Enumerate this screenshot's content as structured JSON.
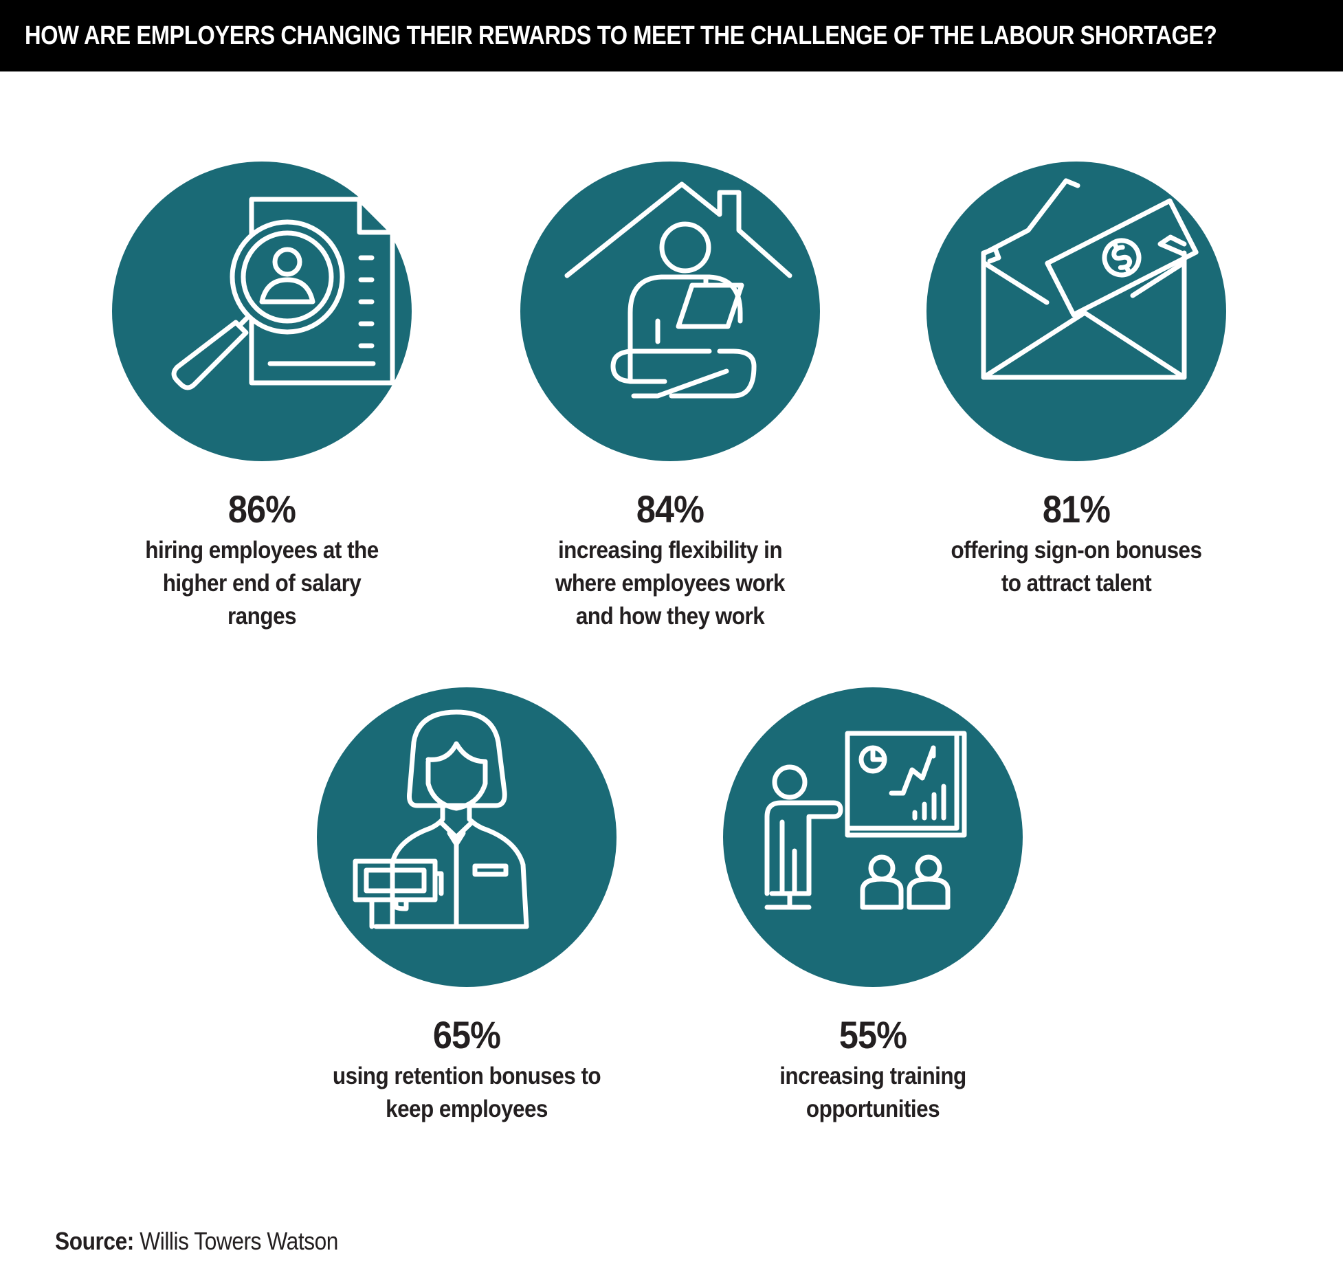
{
  "title": "HOW ARE EMPLOYERS CHANGING THEIR REWARDS TO MEET THE CHALLENGE OF THE LABOUR SHORTAGE?",
  "colors": {
    "header_background": "#000000",
    "header_text": "#ffffff",
    "circle": "#1a6a76",
    "icon_stroke": "#ffffff",
    "text": "#231f20"
  },
  "stats": [
    {
      "value": "86%",
      "percent": 86,
      "label": "hiring employees at the higher end of salary ranges",
      "icon": "magnifier-resume-icon"
    },
    {
      "value": "84%",
      "percent": 84,
      "label": "increasing flexibility in where employees work and how they work",
      "icon": "home-laptop-icon"
    },
    {
      "value": "81%",
      "percent": 81,
      "label": "offering sign-on bonuses to attract talent",
      "icon": "money-envelope-icon"
    },
    {
      "value": "65%",
      "percent": 65,
      "label": "using retention bonuses to keep employees",
      "icon": "employee-cash-icon"
    },
    {
      "value": "55%",
      "percent": 55,
      "label": "increasing training opportunities",
      "icon": "presentation-training-icon"
    }
  ],
  "source": {
    "label": "Source:",
    "name": "Willis Towers Watson"
  }
}
